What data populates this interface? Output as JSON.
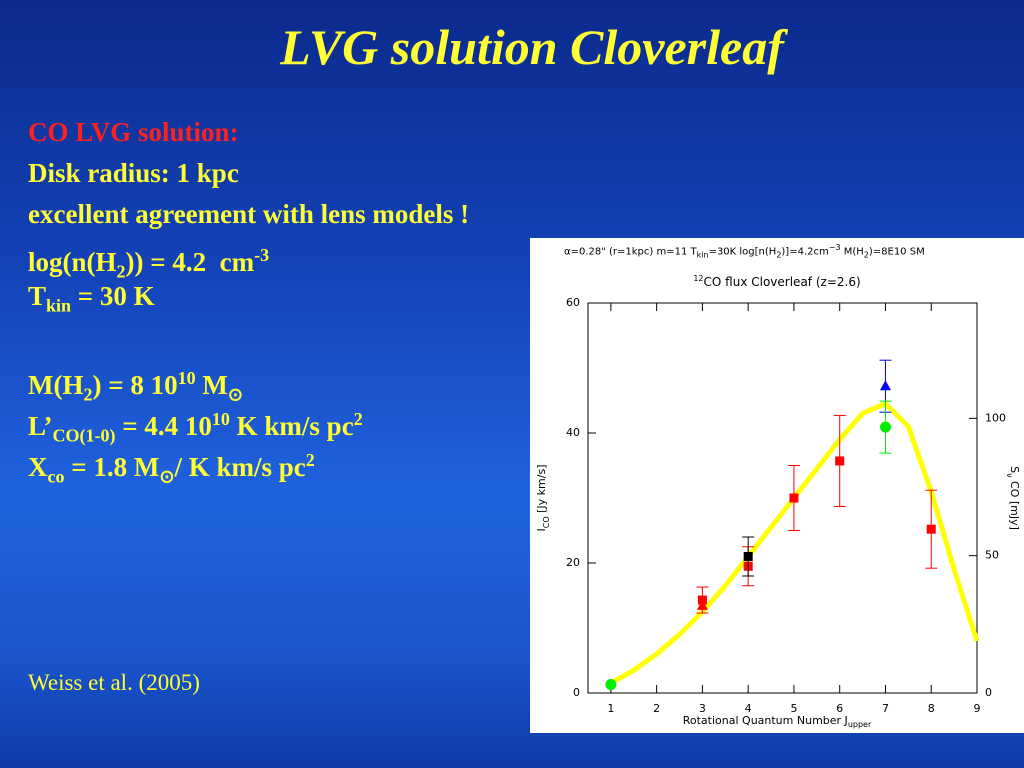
{
  "slide": {
    "title": "LVG solution Cloverleaf",
    "lines": [
      [
        "CO LVG solution:"
      ],
      [
        "Disk radius: 1 kpc"
      ],
      [
        "excellent agreement with lens models !"
      ],
      [
        "log(n(H",
        "2",
        ")) = 4.2  cm",
        "-3"
      ],
      [
        "T",
        "kin",
        " = 30 K"
      ],
      [
        "M(H",
        "2",
        ") = 8 10",
        "10",
        " M",
        "⊙"
      ],
      [
        "L’",
        "CO(1-0)",
        " = 4.4 10",
        "10",
        " K km/s pc",
        "2"
      ],
      [
        "X",
        "co",
        " = 1.8 M",
        "⊙",
        "/ K km/s pc",
        "2"
      ]
    ],
    "citation": "Weiss et al. (2005)"
  },
  "chart_data": {
    "type": "scatter",
    "header": [
      "α=0.28\" (r=1kpc) m=11 T",
      "kin",
      "=30K log[n(H",
      "2",
      ")]=4.2cm",
      "−3",
      " M(H",
      "2",
      ")=8E10 SM"
    ],
    "title": [
      "12",
      "CO flux Cloverleaf (z=2.6)"
    ],
    "xlabel": [
      "Rotational Quantum Number J",
      "upper"
    ],
    "ylabel": [
      "I",
      "CO",
      " [Jy km/s]"
    ],
    "y2label": [
      "S",
      "ν",
      " CO [mJy]"
    ],
    "xlim": [
      0.5,
      9
    ],
    "xticks": [
      1,
      2,
      3,
      4,
      5,
      6,
      7,
      8,
      9
    ],
    "ylim": [
      0,
      60
    ],
    "yticks": [
      0,
      20,
      40,
      60
    ],
    "y2lim": [
      0,
      142
    ],
    "y2ticks": [
      0,
      50,
      100
    ],
    "series": [
      {
        "marker": "line",
        "color": "#ffff00",
        "x": [
          1,
          1.5,
          2,
          2.5,
          3,
          3.5,
          4,
          4.5,
          5,
          5.5,
          6,
          6.5,
          7,
          7.5,
          8,
          8.5,
          9
        ],
        "values": [
          1.5,
          3.5,
          6,
          9,
          12.5,
          16.5,
          21,
          25.5,
          30,
          34.5,
          39,
          43,
          44.5,
          41,
          31,
          19,
          8
        ]
      },
      {
        "marker": "square",
        "color": "#ff0000",
        "x": [
          3,
          4,
          5,
          6,
          8
        ],
        "values": [
          14.3,
          19.5,
          30,
          35.7,
          25.2
        ],
        "errors": [
          2,
          3,
          5,
          7,
          6
        ]
      },
      {
        "marker": "square",
        "color": "#000000",
        "x": [
          4
        ],
        "values": [
          21
        ],
        "errors": [
          3
        ]
      },
      {
        "marker": "triangle",
        "color": "#ff0000",
        "x": [
          3
        ],
        "values": [
          13.4
        ]
      },
      {
        "marker": "triangle",
        "color": "#0000ff",
        "x": [
          7
        ],
        "values": [
          47.2
        ],
        "errors": [
          4
        ]
      },
      {
        "marker": "circle",
        "color": "#00ee00",
        "x": [
          1,
          7
        ],
        "values": [
          1.3,
          40.9
        ],
        "errors": [
          null,
          4
        ]
      }
    ]
  }
}
